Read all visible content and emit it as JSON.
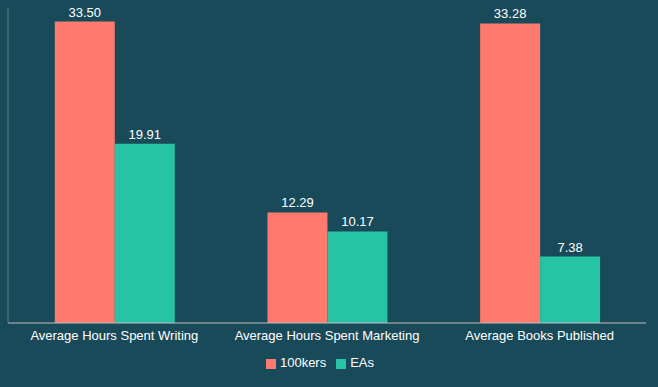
{
  "chart_data": {
    "type": "bar",
    "categories": [
      "Average Hours Spent Writing",
      "Average Hours Spent Marketing",
      "Average Books Published"
    ],
    "series": [
      {
        "name": "100kers",
        "color": "#fe7a6e",
        "values": [
          33.5,
          12.29,
          33.28
        ],
        "value_labels": [
          "33.50",
          "12.29",
          "33.28"
        ]
      },
      {
        "name": "EAs",
        "color": "#26c4a5",
        "values": [
          19.91,
          10.17,
          7.38
        ],
        "value_labels": [
          "19.91",
          "10.17",
          "7.38"
        ]
      }
    ],
    "ylim": [
      0,
      35
    ],
    "yticks": [],
    "data_labels": true,
    "tick_labels": "x",
    "legend": "bottom",
    "grid": false
  }
}
